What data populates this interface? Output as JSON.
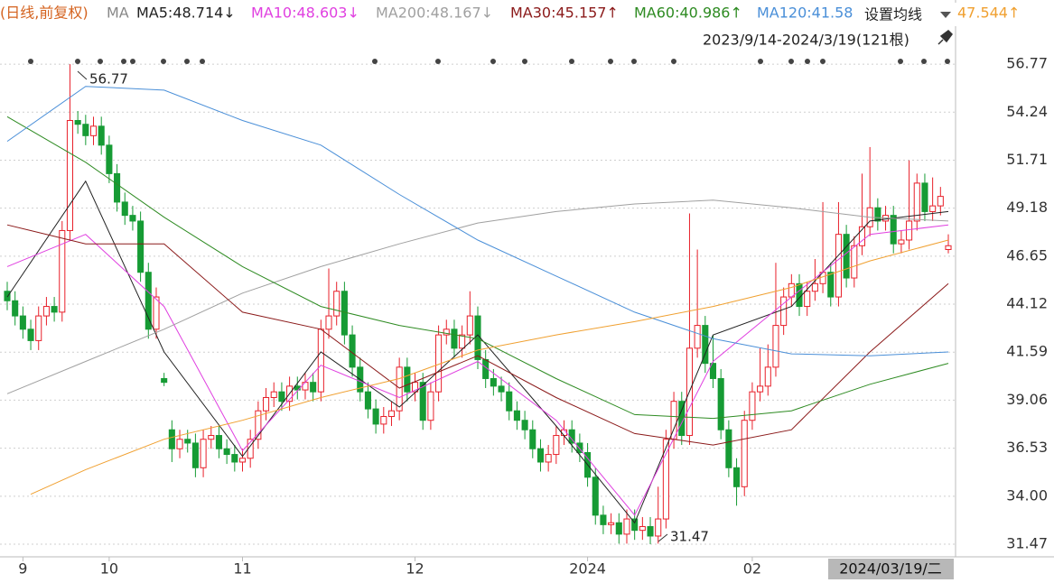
{
  "chart_data": {
    "type": "candlestick",
    "title": "(日线,前复权)",
    "legend_title": "MA",
    "button": "设置均线",
    "range_label": "2023/9/14-2024/3/19(121根)",
    "cursor_date": "2024/03/19/二",
    "annotations": [
      "56.77",
      "31.47"
    ],
    "up_color": "#e8202a",
    "down_color": "#169b34",
    "grid": true,
    "ylim": [
      30.9,
      60.15
    ],
    "yticks": [
      56.77,
      54.24,
      51.71,
      49.18,
      46.65,
      44.12,
      41.59,
      39.06,
      36.53,
      {
        "value": 34,
        "label": "34.00"
      },
      31.47
    ],
    "xticks": [
      {
        "value": 2,
        "label": "9"
      },
      {
        "value": 13,
        "label": "10"
      },
      {
        "value": 30,
        "label": "11"
      },
      {
        "value": 52,
        "label": "12"
      },
      {
        "value": 74,
        "label": "2024"
      },
      {
        "value": 95,
        "label": "02"
      }
    ],
    "candles": {
      "open": [
        44.8,
        44.3,
        43.5,
        42.8,
        42.2,
        43.5,
        44.0,
        43.7,
        48.0,
        53.8,
        53.6,
        53.0,
        53.5,
        52.5,
        51.0,
        49.5,
        48.8,
        48.5,
        45.8,
        42.8,
        40.2,
        37.5,
        36.5,
        37.0,
        36.8,
        35.5,
        37.0,
        37.2,
        36.5,
        36.2,
        35.8,
        36.0,
        37.0,
        38.5,
        39.2,
        39.5,
        39.0,
        39.8,
        39.6,
        40.0,
        39.5,
        42.8,
        43.5,
        44.8,
        42.5,
        40.8,
        39.5,
        38.6,
        37.8,
        38.2,
        38.5,
        40.8,
        39.5,
        40.0,
        38.0,
        39.5,
        42.5,
        42.8,
        41.8,
        42.5,
        43.5,
        41.2,
        40.2,
        39.8,
        39.5,
        38.5,
        38.0,
        37.5,
        36.5,
        35.8,
        36.2,
        37.2,
        37.5,
        36.8,
        36.3,
        35.0,
        33.0,
        32.5,
        32.6,
        32.0,
        32.8,
        32.2,
        32.4,
        31.9,
        32.8,
        37.0,
        39.0,
        37.2,
        41.8,
        43.0,
        41.0,
        40.2,
        37.5,
        35.5,
        34.5,
        38.0,
        39.5,
        39.8,
        40.8,
        43.0,
        44.5,
        45.2,
        44.0,
        44.8,
        45.2,
        45.8,
        44.5,
        47.8,
        45.5,
        47.2,
        48.2,
        49.2,
        48.5,
        48.8,
        47.3,
        47.5,
        48.5,
        50.5,
        49.0,
        49.3,
        47.0
      ],
      "high": [
        45.3,
        44.8,
        44.0,
        43.3,
        44.0,
        44.5,
        44.5,
        48.5,
        56.77,
        54.3,
        54.1,
        54.0,
        54.0,
        53.0,
        51.5,
        50.0,
        49.3,
        49.0,
        46.3,
        45.0,
        40.5,
        38.0,
        37.5,
        37.5,
        37.3,
        37.5,
        37.7,
        37.7,
        37.0,
        36.7,
        36.5,
        37.5,
        39.0,
        39.7,
        40.0,
        40.0,
        40.3,
        40.3,
        40.5,
        40.5,
        43.3,
        46.0,
        45.3,
        45.3,
        43.0,
        41.3,
        40.0,
        39.1,
        38.7,
        39.0,
        41.3,
        41.3,
        40.5,
        40.5,
        40.0,
        43.0,
        43.3,
        43.3,
        43.0,
        44.8,
        44.0,
        41.7,
        40.7,
        40.3,
        40.0,
        39.0,
        38.5,
        38.0,
        37.0,
        36.7,
        37.7,
        38.0,
        38.0,
        37.3,
        36.8,
        35.5,
        33.5,
        33.1,
        33.1,
        33.3,
        33.3,
        32.9,
        32.9,
        34.5,
        37.5,
        39.5,
        39.5,
        48.9,
        47.0,
        43.5,
        42.5,
        40.7,
        38.0,
        36.0,
        38.5,
        40.0,
        41.8,
        42.0,
        46.3,
        45.0,
        45.7,
        45.7,
        45.3,
        46.5,
        49.5,
        46.3,
        49.5,
        48.3,
        47.7,
        51.0,
        52.4,
        49.7,
        49.3,
        49.3,
        48.0,
        51.7,
        51.0,
        51.0,
        50.8,
        50.3,
        47.8
      ],
      "low": [
        43.8,
        43.0,
        42.3,
        41.7,
        41.7,
        43.0,
        43.2,
        43.2,
        47.5,
        53.1,
        52.5,
        52.5,
        52.0,
        50.5,
        49.0,
        48.3,
        48.0,
        45.3,
        42.3,
        42.3,
        39.8,
        35.8,
        36.0,
        36.3,
        35.0,
        35.0,
        36.5,
        36.0,
        35.7,
        35.3,
        35.3,
        35.5,
        36.5,
        38.0,
        38.7,
        38.5,
        38.5,
        39.1,
        39.1,
        39.0,
        39.0,
        42.3,
        43.0,
        42.0,
        40.3,
        39.0,
        38.1,
        37.3,
        37.3,
        37.7,
        38.0,
        39.0,
        39.0,
        37.5,
        37.5,
        39.0,
        42.0,
        41.3,
        41.3,
        42.0,
        40.7,
        39.7,
        39.3,
        39.0,
        38.0,
        37.5,
        37.0,
        36.0,
        35.3,
        35.3,
        35.7,
        36.7,
        36.3,
        35.8,
        34.5,
        32.5,
        32.0,
        32.0,
        31.5,
        31.5,
        31.7,
        31.7,
        31.47,
        31.5,
        32.3,
        36.5,
        36.7,
        36.7,
        41.3,
        40.5,
        39.7,
        37.0,
        35.0,
        33.5,
        34.0,
        37.5,
        39.0,
        39.3,
        40.3,
        42.5,
        44.0,
        43.5,
        43.5,
        44.3,
        44.7,
        44.0,
        44.0,
        45.0,
        45.0,
        46.7,
        47.7,
        48.0,
        48.0,
        46.8,
        46.8,
        47.0,
        48.0,
        48.5,
        48.5,
        48.8,
        46.8
      ],
      "close": [
        44.3,
        43.5,
        42.8,
        42.2,
        43.5,
        44.0,
        43.7,
        48.0,
        53.8,
        53.6,
        53.0,
        53.5,
        52.5,
        51.0,
        49.5,
        48.8,
        48.5,
        45.8,
        42.8,
        44.5,
        40.0,
        36.5,
        37.0,
        36.8,
        35.5,
        37.0,
        37.2,
        36.5,
        36.2,
        35.8,
        36.0,
        37.0,
        38.5,
        39.2,
        39.5,
        39.0,
        39.8,
        39.6,
        40.0,
        39.5,
        42.8,
        43.5,
        44.8,
        42.5,
        40.8,
        39.5,
        38.6,
        37.8,
        38.2,
        38.5,
        40.8,
        39.5,
        40.0,
        38.0,
        39.5,
        42.5,
        42.8,
        41.8,
        42.5,
        43.5,
        41.2,
        40.2,
        39.8,
        39.5,
        38.5,
        38.0,
        37.5,
        36.5,
        35.8,
        36.2,
        37.2,
        37.5,
        36.8,
        36.3,
        35.0,
        33.0,
        32.5,
        32.6,
        32.0,
        32.8,
        32.2,
        32.4,
        31.9,
        32.8,
        37.0,
        39.0,
        37.2,
        41.8,
        43.0,
        41.0,
        40.2,
        37.5,
        35.5,
        34.5,
        38.0,
        39.5,
        39.8,
        40.8,
        43.0,
        44.5,
        45.2,
        44.0,
        44.8,
        45.2,
        45.8,
        44.5,
        47.8,
        45.5,
        47.2,
        48.2,
        49.2,
        48.5,
        48.8,
        47.3,
        47.5,
        48.5,
        50.5,
        49.0,
        49.3,
        49.8,
        47.2
      ]
    },
    "series": [
      {
        "name": "MA5:48.714↓",
        "color": "#222222",
        "x": [
          0,
          10,
          20,
          30,
          40,
          50,
          60,
          70,
          80,
          90,
          100,
          110,
          120
        ],
        "values": [
          44.5,
          50.6,
          41.6,
          36.1,
          41.6,
          38.7,
          42.5,
          37.7,
          32.6,
          42.5,
          44.0,
          48.5,
          49.0
        ]
      },
      {
        "name": "MA10:48.603↓",
        "color": "#e040e0",
        "x": [
          0,
          10,
          20,
          30,
          40,
          50,
          60,
          70,
          80,
          90,
          100,
          110,
          120
        ],
        "values": [
          46.1,
          47.8,
          44.0,
          36.4,
          40.9,
          39.2,
          41.1,
          38.0,
          33.0,
          41.1,
          44.5,
          47.8,
          48.3
        ]
      },
      {
        "name": "MA200:48.167↓",
        "color": "#a0a0a0",
        "x": [
          0,
          10,
          20,
          30,
          40,
          50,
          60,
          70,
          80,
          90,
          100,
          110,
          120
        ],
        "values": [
          39.4,
          41.1,
          42.8,
          44.7,
          46.1,
          47.3,
          48.4,
          49.0,
          49.4,
          49.6,
          49.2,
          48.7,
          48.5
        ]
      },
      {
        "name": "MA30:45.157↑",
        "color": "#8b1a1a",
        "x": [
          0,
          10,
          20,
          30,
          40,
          50,
          60,
          70,
          80,
          90,
          100,
          110,
          120
        ],
        "values": [
          48.3,
          47.3,
          47.3,
          43.7,
          42.8,
          39.7,
          41.4,
          39.2,
          37.3,
          36.7,
          37.5,
          41.6,
          45.2
        ]
      },
      {
        "name": "MA60:40.986↑",
        "color": "#2e8b22",
        "x": [
          0,
          10,
          20,
          30,
          40,
          50,
          60,
          70,
          80,
          90,
          100,
          110,
          120
        ],
        "values": [
          54.0,
          51.6,
          48.7,
          46.1,
          44.0,
          43.0,
          42.3,
          40.2,
          38.3,
          38.1,
          38.5,
          39.9,
          41.0
        ]
      },
      {
        "name": "MA120:41.58",
        "color": "#4a8fd8",
        "x": [
          0,
          10,
          20,
          30,
          40,
          50,
          60,
          70,
          80,
          90,
          100,
          110,
          120
        ],
        "values": [
          52.7,
          55.6,
          55.4,
          53.8,
          52.5,
          49.9,
          47.5,
          45.6,
          43.7,
          42.3,
          41.5,
          41.4,
          41.6
        ]
      },
      {
        "name": "47.544↑",
        "color": "#f0a030",
        "x": [
          3,
          10,
          20,
          30,
          40,
          50,
          60,
          70,
          80,
          90,
          100,
          110,
          120
        ],
        "values": [
          34.1,
          35.4,
          37.0,
          38.0,
          39.2,
          40.2,
          41.7,
          42.5,
          43.2,
          44.0,
          45.0,
          46.4,
          47.5
        ]
      }
    ]
  }
}
